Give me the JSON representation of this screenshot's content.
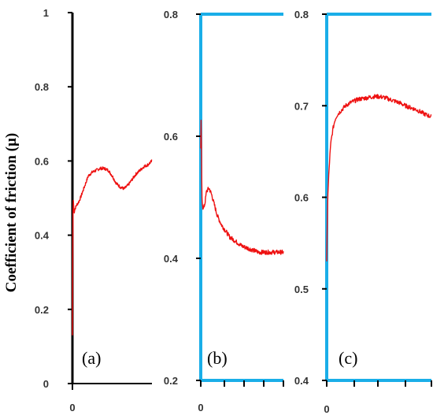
{
  "colors": {
    "trace": "#ee1111",
    "panel_a_axis": "#000000",
    "panel_bc_axis": "#1aaee8"
  },
  "chart_data": [
    {
      "type": "line",
      "panel": "(a)",
      "ylabel": "Coefficient of friction (µ)",
      "ylim": [
        0,
        1
      ],
      "yticks": [
        "0",
        "0.2",
        "0.4",
        "0.6",
        "0.8",
        "1"
      ],
      "xticks": [
        "0"
      ],
      "series": [
        {
          "x": [
            0,
            0.003,
            0.006,
            0.01,
            0.015,
            0.02,
            0.03,
            0.05,
            0.08,
            0.1,
            0.15,
            0.2,
            0.25,
            0.3,
            0.35,
            0.4,
            0.45,
            0.5,
            0.55,
            0.6,
            0.65,
            0.7,
            0.75,
            0.8,
            0.85,
            0.9,
            0.95,
            1.0
          ],
          "y": [
            0.13,
            0.3,
            0.44,
            0.5,
            0.48,
            0.46,
            0.47,
            0.48,
            0.49,
            0.5,
            0.53,
            0.56,
            0.57,
            0.575,
            0.58,
            0.58,
            0.575,
            0.56,
            0.54,
            0.53,
            0.525,
            0.535,
            0.55,
            0.565,
            0.575,
            0.585,
            0.59,
            0.6
          ]
        }
      ]
    },
    {
      "type": "line",
      "panel": "(b)",
      "ylim": [
        0.2,
        0.8
      ],
      "yticks": [
        "0.2",
        "0.4",
        "0.6",
        "0.8"
      ],
      "xticks": [
        "0"
      ],
      "series": [
        {
          "x": [
            0,
            0.005,
            0.01,
            0.015,
            0.02,
            0.03,
            0.05,
            0.07,
            0.1,
            0.13,
            0.16,
            0.2,
            0.25,
            0.3,
            0.35,
            0.4,
            0.5,
            0.6,
            0.7,
            0.8,
            0.9,
            1.0
          ],
          "y": [
            0.58,
            0.64,
            0.55,
            0.5,
            0.49,
            0.48,
            0.49,
            0.51,
            0.515,
            0.505,
            0.49,
            0.47,
            0.455,
            0.445,
            0.435,
            0.43,
            0.42,
            0.415,
            0.41,
            0.41,
            0.41,
            0.41
          ]
        }
      ]
    },
    {
      "type": "line",
      "panel": "(c)",
      "ylim": [
        0.4,
        0.8
      ],
      "yticks": [
        "0.4",
        "0.5",
        "0.6",
        "0.7",
        "0.8"
      ],
      "xticks": [
        "0"
      ],
      "series": [
        {
          "x": [
            0,
            0.005,
            0.01,
            0.02,
            0.03,
            0.04,
            0.06,
            0.08,
            0.1,
            0.14,
            0.18,
            0.22,
            0.26,
            0.3,
            0.35,
            0.4,
            0.45,
            0.5,
            0.55,
            0.6,
            0.65,
            0.7,
            0.75,
            0.8,
            0.85,
            0.9,
            0.95,
            1.0
          ],
          "y": [
            0.53,
            0.57,
            0.6,
            0.625,
            0.645,
            0.66,
            0.675,
            0.685,
            0.69,
            0.695,
            0.7,
            0.703,
            0.705,
            0.707,
            0.708,
            0.709,
            0.71,
            0.71,
            0.709,
            0.707,
            0.705,
            0.703,
            0.7,
            0.698,
            0.696,
            0.693,
            0.69,
            0.688
          ]
        }
      ]
    }
  ]
}
